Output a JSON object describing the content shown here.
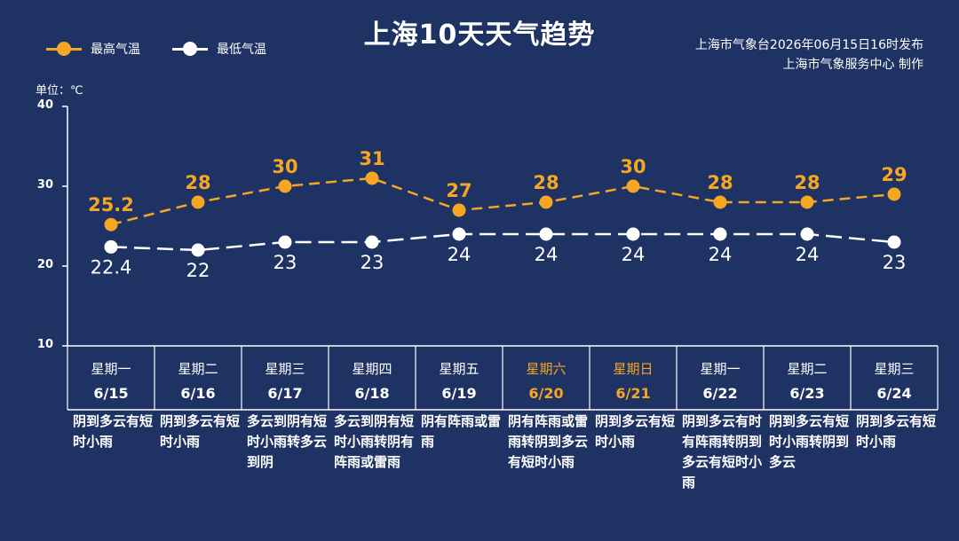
{
  "title": "上海10天天气趋势",
  "source_line1": "上海市气象台2026年06月15日16时发布",
  "source_line2": "上海市气象服务中心  制作",
  "unit_label": "单位：℃",
  "colors": {
    "background": "#1e3264",
    "high": "#f5a623",
    "low": "#ffffff",
    "weekend": "#f5a623"
  },
  "chart_data": {
    "type": "line",
    "title": "上海10天天气趋势",
    "ylabel": "单位：℃",
    "ylim": [
      10,
      40
    ],
    "yticks": [
      "40",
      "30",
      "20",
      "10"
    ],
    "weekdays": [
      "星期一",
      "星期二",
      "星期三",
      "星期四",
      "星期五",
      "星期六",
      "星期日",
      "星期一",
      "星期二",
      "星期三"
    ],
    "categories": [
      "6/15",
      "6/16",
      "6/17",
      "6/18",
      "6/19",
      "6/20",
      "6/21",
      "6/22",
      "6/23",
      "6/24"
    ],
    "weekend": [
      false,
      false,
      false,
      false,
      false,
      true,
      true,
      false,
      false,
      false
    ],
    "descriptions": [
      "阴到多云有短时小雨",
      "阴到多云有短时小雨",
      "多云到阴有短时小雨转多云到阴",
      "多云到阴有短时小雨转阴有阵雨或雷雨",
      "阴有阵雨或雷雨",
      "阴有阵雨或雷雨转阴到多云有短时小雨",
      "阴到多云有短时小雨",
      "阴到多云有时有阵雨转阴到多云有短时小雨",
      "阴到多云有短时小雨转阴到多云",
      "阴到多云有短时小雨"
    ],
    "legend_position": "top-left",
    "series": [
      {
        "name": "最高气温",
        "values": [
          25.2,
          28,
          30,
          31,
          27,
          28,
          30,
          28,
          28,
          29
        ],
        "labels": [
          "25.2",
          "28",
          "30",
          "31",
          "27",
          "28",
          "30",
          "28",
          "28",
          "29"
        ]
      },
      {
        "name": "最低气温",
        "values": [
          22.4,
          22,
          23,
          23,
          24,
          24,
          24,
          24,
          24,
          23
        ],
        "labels": [
          "22.4",
          "22",
          "23",
          "23",
          "24",
          "24",
          "24",
          "24",
          "24",
          "23"
        ]
      }
    ]
  }
}
